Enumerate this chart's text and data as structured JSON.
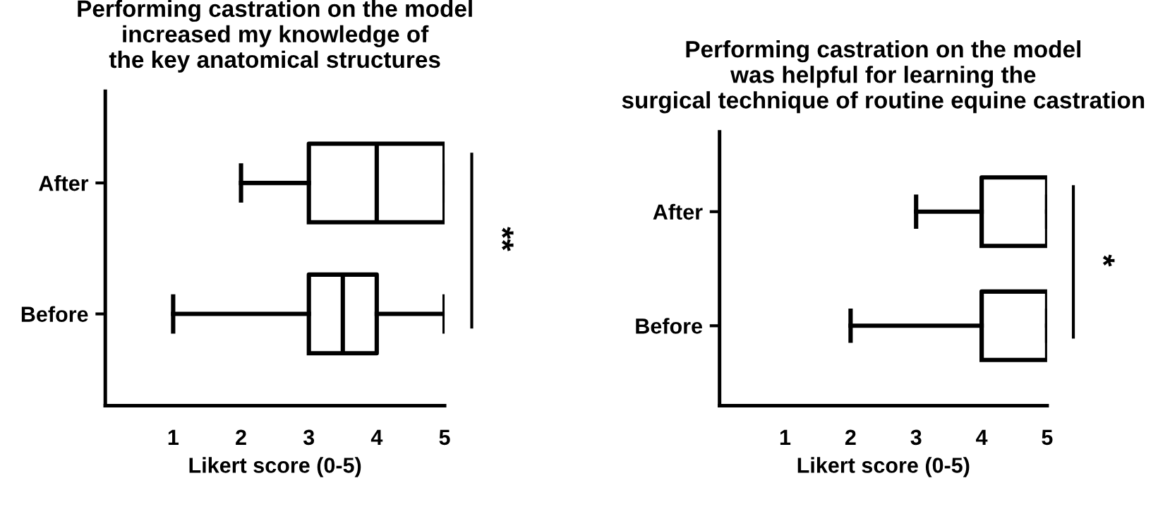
{
  "chart_data": [
    {
      "type": "box",
      "title": "Performing castration on the model\nincreased my knowledge of\nthe key anatomical structures",
      "xlabel": "Likert score (0-5)",
      "orientation": "horizontal",
      "categories": [
        "After",
        "Before"
      ],
      "boxes": [
        {
          "low": 2,
          "q1": 3,
          "median": 4,
          "q3": 5,
          "high": 5
        },
        {
          "low": 1,
          "q1": 3,
          "median": 3.5,
          "q3": 4,
          "high": 5
        }
      ],
      "xlim": [
        0,
        5
      ],
      "xticks": [
        1,
        2,
        3,
        4,
        5
      ],
      "grid": false,
      "annotations": [
        "**"
      ]
    },
    {
      "type": "box",
      "title": "Performing castration on the model\nwas helpful for learning the\nsurgical technique of routine equine castration",
      "xlabel": "Likert score (0-5)",
      "orientation": "horizontal",
      "categories": [
        "After",
        "Before"
      ],
      "boxes": [
        {
          "low": 3,
          "q1": 4,
          "median": 4,
          "q3": 5,
          "high": 5
        },
        {
          "low": 2,
          "q1": 4,
          "median": 4,
          "q3": 5,
          "high": 5
        }
      ],
      "xlim": [
        0,
        5
      ],
      "xticks": [
        1,
        2,
        3,
        4,
        5
      ],
      "grid": false,
      "annotations": [
        "*"
      ]
    }
  ]
}
